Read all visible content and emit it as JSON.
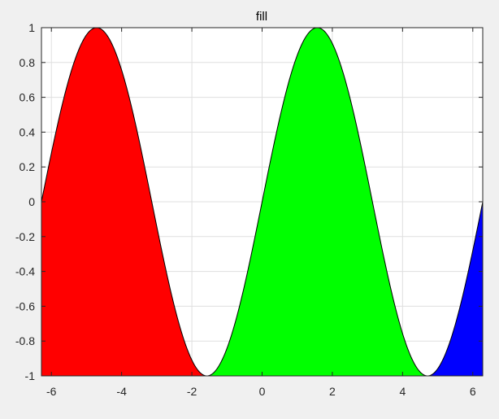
{
  "window": {
    "background": "#f0f0f0"
  },
  "chart_data": {
    "type": "area",
    "title": "fill",
    "xlabel": "",
    "ylabel": "",
    "xlim": [
      -6.283,
      6.283
    ],
    "ylim": [
      -1,
      1
    ],
    "grid": true,
    "curve": {
      "function": "sin(x)",
      "x_range": [
        -6.283,
        6.283
      ],
      "stroke": "#000000"
    },
    "fill_baseline": -1,
    "series": [
      {
        "x_range": [
          -6.283,
          -1.571
        ],
        "color": "#ff0000"
      },
      {
        "x_range": [
          -1.571,
          4.712
        ],
        "color": "#00ff00"
      },
      {
        "x_range": [
          4.712,
          6.283
        ],
        "color": "#0000ff"
      }
    ],
    "x_ticks": [
      -6,
      -4,
      -2,
      0,
      2,
      4,
      6
    ],
    "x_tick_labels": [
      "-6",
      "-4",
      "-2",
      "0",
      "2",
      "4",
      "6"
    ],
    "y_ticks": [
      1,
      0.8,
      0.6,
      0.4,
      0.2,
      0,
      -0.2,
      -0.4,
      -0.6,
      -0.8,
      -1
    ],
    "y_tick_labels": [
      "1",
      "0.8",
      "0.6",
      "0.4",
      "0.2",
      "0",
      "-0.2",
      "-0.4",
      "-0.6",
      "-0.8",
      "-1"
    ]
  }
}
